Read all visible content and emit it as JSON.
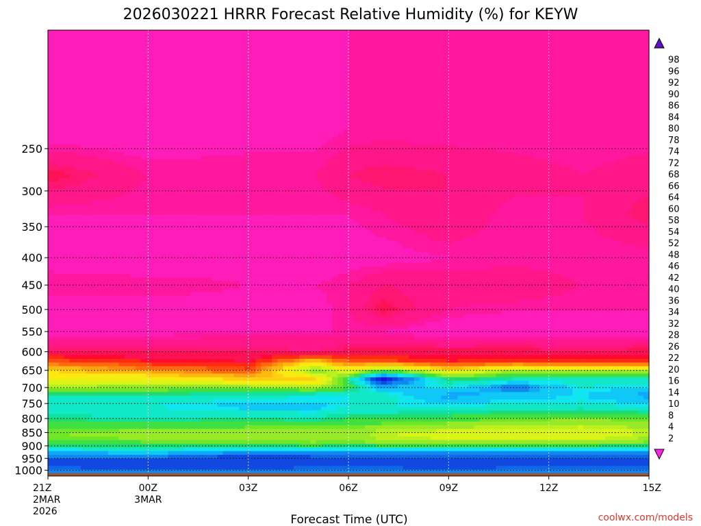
{
  "chart_data": {
    "type": "heatmap",
    "title": "2026030221 HRRR Forecast Relative Humidity (%) for KEYW",
    "xlabel": "Forecast Time (UTC)",
    "ylabel": "",
    "x_ticks": [
      {
        "hours": 0,
        "lines": [
          "21Z",
          "2MAR",
          "2026"
        ]
      },
      {
        "hours": 3,
        "lines": [
          "00Z",
          "3MAR"
        ]
      },
      {
        "hours": 6,
        "lines": [
          "03Z"
        ]
      },
      {
        "hours": 9,
        "lines": [
          "06Z"
        ]
      },
      {
        "hours": 12,
        "lines": [
          "09Z"
        ]
      },
      {
        "hours": 15,
        "lines": [
          "12Z"
        ]
      },
      {
        "hours": 18,
        "lines": [
          "15Z"
        ]
      }
    ],
    "y_ticks": [
      250,
      300,
      350,
      400,
      450,
      500,
      550,
      600,
      650,
      700,
      750,
      800,
      850,
      900,
      950,
      1000
    ],
    "y_scale": "log-pressure",
    "ylim": [
      1025,
      150
    ],
    "xlim": [
      0,
      18
    ],
    "grid": true,
    "surface_color": "#a5522d",
    "colorbar": {
      "levels": [
        2,
        4,
        8,
        10,
        14,
        16,
        20,
        22,
        26,
        28,
        32,
        34,
        36,
        40,
        42,
        46,
        48,
        52,
        54,
        58,
        60,
        64,
        66,
        68,
        72,
        74,
        78,
        80,
        84,
        86,
        90,
        92,
        96,
        98
      ],
      "colors": [
        "#ff22ee",
        "#ff1ed0",
        "#ff1cb8",
        "#ff189e",
        "#ff1688",
        "#ff1670",
        "#ff1255",
        "#ff0a30",
        "#ff2a14",
        "#ff4a10",
        "#ff6a10",
        "#ff8810",
        "#ffa010",
        "#ffb810",
        "#ffd010",
        "#ffe810",
        "#f0f010",
        "#d8f418",
        "#b8f020",
        "#98ea28",
        "#70e628",
        "#40e040",
        "#20dc70",
        "#10e0a0",
        "#10e8c8",
        "#10e6f0",
        "#10c8f8",
        "#10a8f8",
        "#1088f0",
        "#1068e8",
        "#1048e0",
        "#1228e0",
        "#1a10e0",
        "#3a08d8",
        "#6010c8"
      ],
      "extend": "both"
    },
    "rh_profiles": [
      {
        "hour": 0,
        "levels": [
          [
            150,
            8
          ],
          [
            230,
            4
          ],
          [
            280,
            18
          ],
          [
            330,
            8
          ],
          [
            400,
            6
          ],
          [
            450,
            10
          ],
          [
            500,
            6
          ],
          [
            550,
            6
          ],
          [
            600,
            16
          ],
          [
            625,
            28
          ],
          [
            650,
            42
          ],
          [
            675,
            46
          ],
          [
            700,
            54
          ],
          [
            725,
            68
          ],
          [
            760,
            72
          ],
          [
            800,
            66
          ],
          [
            850,
            58
          ],
          [
            880,
            60
          ],
          [
            900,
            66
          ],
          [
            930,
            80
          ],
          [
            950,
            86
          ],
          [
            980,
            88
          ],
          [
            1010,
            80
          ]
        ]
      },
      {
        "hour": 3,
        "levels": [
          [
            150,
            8
          ],
          [
            230,
            4
          ],
          [
            280,
            10
          ],
          [
            330,
            8
          ],
          [
            400,
            4
          ],
          [
            450,
            10
          ],
          [
            500,
            6
          ],
          [
            550,
            6
          ],
          [
            600,
            16
          ],
          [
            625,
            22
          ],
          [
            650,
            34
          ],
          [
            675,
            48
          ],
          [
            700,
            56
          ],
          [
            725,
            68
          ],
          [
            760,
            72
          ],
          [
            800,
            68
          ],
          [
            850,
            56
          ],
          [
            880,
            58
          ],
          [
            900,
            66
          ],
          [
            930,
            78
          ],
          [
            950,
            86
          ],
          [
            980,
            90
          ],
          [
            1010,
            80
          ]
        ]
      },
      {
        "hour": 6,
        "levels": [
          [
            150,
            8
          ],
          [
            230,
            6
          ],
          [
            280,
            10
          ],
          [
            330,
            8
          ],
          [
            400,
            6
          ],
          [
            450,
            8
          ],
          [
            500,
            6
          ],
          [
            550,
            8
          ],
          [
            600,
            16
          ],
          [
            625,
            20
          ],
          [
            650,
            28
          ],
          [
            675,
            40
          ],
          [
            700,
            56
          ],
          [
            725,
            70
          ],
          [
            760,
            76
          ],
          [
            800,
            66
          ],
          [
            850,
            56
          ],
          [
            880,
            58
          ],
          [
            900,
            66
          ],
          [
            930,
            82
          ],
          [
            950,
            90
          ],
          [
            980,
            90
          ],
          [
            1010,
            80
          ]
        ]
      },
      {
        "hour": 8,
        "levels": [
          [
            150,
            8
          ],
          [
            230,
            6
          ],
          [
            280,
            10
          ],
          [
            330,
            8
          ],
          [
            400,
            4
          ],
          [
            450,
            8
          ],
          [
            500,
            6
          ],
          [
            550,
            8
          ],
          [
            600,
            14
          ],
          [
            625,
            40
          ],
          [
            650,
            60
          ],
          [
            675,
            40
          ],
          [
            700,
            54
          ],
          [
            725,
            72
          ],
          [
            760,
            76
          ],
          [
            800,
            68
          ],
          [
            850,
            54
          ],
          [
            880,
            56
          ],
          [
            900,
            64
          ],
          [
            930,
            82
          ],
          [
            950,
            88
          ],
          [
            980,
            88
          ],
          [
            1010,
            80
          ]
        ]
      },
      {
        "hour": 9,
        "levels": [
          [
            150,
            8
          ],
          [
            230,
            8
          ],
          [
            280,
            14
          ],
          [
            330,
            8
          ],
          [
            400,
            6
          ],
          [
            450,
            10
          ],
          [
            500,
            10
          ],
          [
            550,
            8
          ],
          [
            600,
            18
          ],
          [
            625,
            28
          ],
          [
            650,
            46
          ],
          [
            675,
            66
          ],
          [
            700,
            62
          ],
          [
            725,
            72
          ],
          [
            760,
            72
          ],
          [
            800,
            64
          ],
          [
            850,
            56
          ],
          [
            880,
            58
          ],
          [
            900,
            66
          ],
          [
            930,
            82
          ],
          [
            950,
            88
          ],
          [
            980,
            88
          ],
          [
            1010,
            80
          ]
        ]
      },
      {
        "hour": 10,
        "levels": [
          [
            150,
            8
          ],
          [
            230,
            8
          ],
          [
            280,
            16
          ],
          [
            330,
            10
          ],
          [
            400,
            6
          ],
          [
            450,
            14
          ],
          [
            500,
            18
          ],
          [
            550,
            8
          ],
          [
            600,
            18
          ],
          [
            625,
            28
          ],
          [
            650,
            60
          ],
          [
            675,
            94
          ],
          [
            700,
            78
          ],
          [
            725,
            70
          ],
          [
            760,
            72
          ],
          [
            800,
            64
          ],
          [
            850,
            52
          ],
          [
            880,
            54
          ],
          [
            900,
            64
          ],
          [
            930,
            82
          ],
          [
            950,
            86
          ],
          [
            980,
            88
          ],
          [
            1010,
            80
          ]
        ]
      },
      {
        "hour": 12,
        "levels": [
          [
            150,
            8
          ],
          [
            230,
            8
          ],
          [
            280,
            14
          ],
          [
            330,
            14
          ],
          [
            400,
            8
          ],
          [
            450,
            12
          ],
          [
            500,
            10
          ],
          [
            550,
            4
          ],
          [
            600,
            18
          ],
          [
            625,
            22
          ],
          [
            650,
            44
          ],
          [
            675,
            64
          ],
          [
            700,
            72
          ],
          [
            725,
            80
          ],
          [
            760,
            72
          ],
          [
            800,
            62
          ],
          [
            850,
            50
          ],
          [
            880,
            52
          ],
          [
            900,
            64
          ],
          [
            930,
            84
          ],
          [
            950,
            86
          ],
          [
            980,
            90
          ],
          [
            1010,
            80
          ]
        ]
      },
      {
        "hour": 14,
        "levels": [
          [
            150,
            8
          ],
          [
            230,
            8
          ],
          [
            280,
            12
          ],
          [
            330,
            8
          ],
          [
            400,
            8
          ],
          [
            450,
            14
          ],
          [
            500,
            8
          ],
          [
            550,
            6
          ],
          [
            600,
            18
          ],
          [
            625,
            24
          ],
          [
            650,
            54
          ],
          [
            675,
            68
          ],
          [
            700,
            84
          ],
          [
            725,
            76
          ],
          [
            760,
            70
          ],
          [
            800,
            60
          ],
          [
            850,
            48
          ],
          [
            880,
            52
          ],
          [
            900,
            64
          ],
          [
            930,
            82
          ],
          [
            950,
            88
          ],
          [
            980,
            88
          ],
          [
            1010,
            80
          ]
        ]
      },
      {
        "hour": 16,
        "levels": [
          [
            150,
            8
          ],
          [
            230,
            8
          ],
          [
            280,
            10
          ],
          [
            330,
            10
          ],
          [
            400,
            8
          ],
          [
            450,
            10
          ],
          [
            500,
            8
          ],
          [
            550,
            6
          ],
          [
            600,
            16
          ],
          [
            625,
            24
          ],
          [
            650,
            52
          ],
          [
            675,
            70
          ],
          [
            700,
            72
          ],
          [
            725,
            74
          ],
          [
            760,
            70
          ],
          [
            800,
            58
          ],
          [
            850,
            48
          ],
          [
            880,
            52
          ],
          [
            900,
            64
          ],
          [
            930,
            84
          ],
          [
            950,
            86
          ],
          [
            980,
            88
          ],
          [
            1010,
            80
          ]
        ]
      },
      {
        "hour": 18,
        "levels": [
          [
            150,
            8
          ],
          [
            230,
            8
          ],
          [
            280,
            12
          ],
          [
            330,
            16
          ],
          [
            400,
            8
          ],
          [
            450,
            10
          ],
          [
            500,
            8
          ],
          [
            550,
            6
          ],
          [
            600,
            18
          ],
          [
            625,
            24
          ],
          [
            650,
            52
          ],
          [
            675,
            68
          ],
          [
            700,
            74
          ],
          [
            725,
            80
          ],
          [
            760,
            72
          ],
          [
            800,
            60
          ],
          [
            850,
            52
          ],
          [
            880,
            56
          ],
          [
            900,
            66
          ],
          [
            930,
            82
          ],
          [
            950,
            86
          ],
          [
            980,
            88
          ],
          [
            1010,
            80
          ]
        ]
      }
    ]
  },
  "credit": "coolwx.com/models"
}
